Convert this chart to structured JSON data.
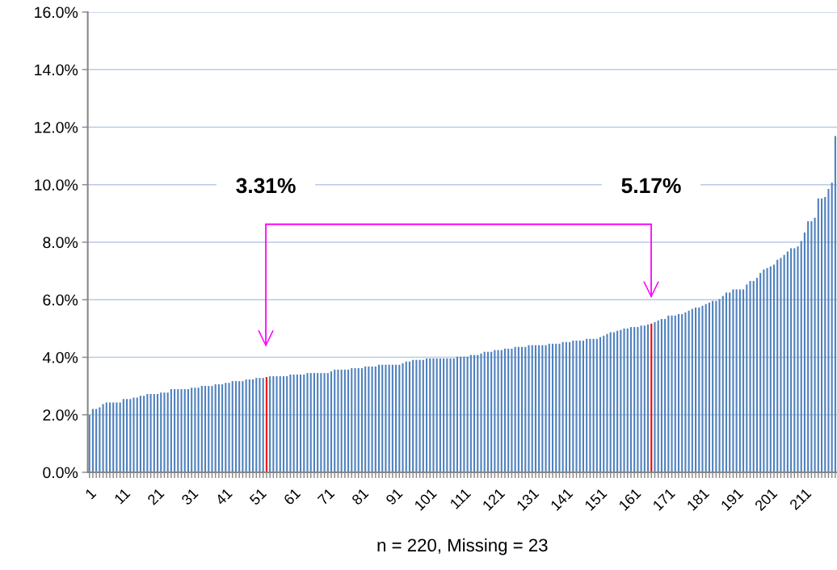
{
  "chart_data": {
    "type": "bar",
    "xlabel": "n = 220, Missing = 23",
    "categories": [
      "1",
      null,
      null,
      null,
      null,
      null,
      null,
      null,
      null,
      null,
      "11",
      null,
      null,
      null,
      null,
      null,
      null,
      null,
      null,
      null,
      "21",
      null,
      null,
      null,
      null,
      null,
      null,
      null,
      null,
      null,
      "31",
      null,
      null,
      null,
      null,
      null,
      null,
      null,
      null,
      null,
      "41",
      null,
      null,
      null,
      null,
      null,
      null,
      null,
      null,
      null,
      "51",
      null,
      null,
      null,
      null,
      null,
      null,
      null,
      null,
      null,
      "61",
      null,
      null,
      null,
      null,
      null,
      null,
      null,
      null,
      null,
      "71",
      null,
      null,
      null,
      null,
      null,
      null,
      null,
      null,
      null,
      "81",
      null,
      null,
      null,
      null,
      null,
      null,
      null,
      null,
      null,
      "91",
      null,
      null,
      null,
      null,
      null,
      null,
      null,
      null,
      null,
      "101",
      null,
      null,
      null,
      null,
      null,
      null,
      null,
      null,
      null,
      "111",
      null,
      null,
      null,
      null,
      null,
      null,
      null,
      null,
      null,
      "121",
      null,
      null,
      null,
      null,
      null,
      null,
      null,
      null,
      null,
      "131",
      null,
      null,
      null,
      null,
      null,
      null,
      null,
      null,
      null,
      "141",
      null,
      null,
      null,
      null,
      null,
      null,
      null,
      null,
      null,
      "151",
      null,
      null,
      null,
      null,
      null,
      null,
      null,
      null,
      null,
      "161",
      null,
      null,
      null,
      null,
      null,
      null,
      null,
      null,
      null,
      "171",
      null,
      null,
      null,
      null,
      null,
      null,
      null,
      null,
      null,
      "181",
      null,
      null,
      null,
      null,
      null,
      null,
      null,
      null,
      null,
      "191",
      null,
      null,
      null,
      null,
      null,
      null,
      null,
      null,
      null,
      "201",
      null,
      null,
      null,
      null,
      null,
      null,
      null,
      null,
      null,
      "211",
      null,
      null,
      null,
      null,
      null,
      null,
      null,
      null,
      null
    ],
    "values": [
      2.0,
      2.2,
      2.2,
      2.26,
      2.37,
      2.43,
      2.43,
      2.43,
      2.43,
      2.43,
      2.55,
      2.55,
      2.55,
      2.6,
      2.6,
      2.66,
      2.66,
      2.72,
      2.72,
      2.72,
      2.72,
      2.77,
      2.77,
      2.77,
      2.89,
      2.89,
      2.89,
      2.89,
      2.89,
      2.89,
      2.94,
      2.94,
      2.94,
      3.0,
      3.0,
      3.0,
      3.0,
      3.06,
      3.06,
      3.06,
      3.11,
      3.11,
      3.17,
      3.17,
      3.17,
      3.17,
      3.23,
      3.23,
      3.23,
      3.28,
      3.28,
      3.28,
      3.31,
      3.34,
      3.34,
      3.34,
      3.34,
      3.34,
      3.34,
      3.4,
      3.4,
      3.4,
      3.4,
      3.4,
      3.45,
      3.45,
      3.45,
      3.45,
      3.45,
      3.45,
      3.45,
      3.51,
      3.57,
      3.57,
      3.57,
      3.57,
      3.57,
      3.62,
      3.62,
      3.62,
      3.62,
      3.68,
      3.68,
      3.68,
      3.68,
      3.74,
      3.74,
      3.74,
      3.74,
      3.74,
      3.74,
      3.74,
      3.79,
      3.85,
      3.85,
      3.91,
      3.91,
      3.91,
      3.91,
      3.96,
      3.96,
      3.96,
      3.96,
      3.96,
      3.96,
      3.96,
      3.96,
      3.96,
      4.02,
      4.02,
      4.02,
      4.02,
      4.08,
      4.08,
      4.08,
      4.13,
      4.19,
      4.19,
      4.19,
      4.25,
      4.25,
      4.25,
      4.3,
      4.3,
      4.3,
      4.36,
      4.36,
      4.36,
      4.36,
      4.42,
      4.42,
      4.42,
      4.42,
      4.42,
      4.42,
      4.47,
      4.47,
      4.47,
      4.47,
      4.53,
      4.53,
      4.53,
      4.58,
      4.58,
      4.58,
      4.58,
      4.64,
      4.64,
      4.64,
      4.64,
      4.7,
      4.75,
      4.81,
      4.87,
      4.87,
      4.92,
      4.95,
      5.0,
      5.0,
      5.05,
      5.05,
      5.05,
      5.1,
      5.1,
      5.14,
      5.17,
      5.22,
      5.28,
      5.33,
      5.33,
      5.45,
      5.45,
      5.45,
      5.5,
      5.5,
      5.56,
      5.62,
      5.68,
      5.73,
      5.73,
      5.79,
      5.85,
      5.9,
      5.96,
      5.96,
      6.02,
      6.13,
      6.25,
      6.25,
      6.36,
      6.36,
      6.36,
      6.36,
      6.53,
      6.65,
      6.65,
      6.76,
      6.93,
      7.05,
      7.1,
      7.16,
      7.22,
      7.39,
      7.45,
      7.56,
      7.68,
      7.79,
      7.79,
      7.85,
      8.04,
      8.34,
      8.73,
      8.73,
      8.85,
      9.52,
      9.52,
      9.57,
      9.85,
      10.07,
      11.69
    ],
    "colors": [
      "#4f81bd",
      "#4f81bd",
      "#4f81bd",
      "#4f81bd",
      "#4f81bd",
      "#4f81bd",
      "#4f81bd",
      "#4f81bd",
      "#4f81bd",
      "#4f81bd",
      "#4f81bd",
      "#4f81bd",
      "#4f81bd",
      "#4f81bd",
      "#4f81bd",
      "#4f81bd",
      "#4f81bd",
      "#4f81bd",
      "#4f81bd",
      "#4f81bd",
      "#4f81bd",
      "#4f81bd",
      "#4f81bd",
      "#4f81bd",
      "#4f81bd",
      "#4f81bd",
      "#4f81bd",
      "#4f81bd",
      "#4f81bd",
      "#4f81bd",
      "#4f81bd",
      "#4f81bd",
      "#4f81bd",
      "#4f81bd",
      "#4f81bd",
      "#4f81bd",
      "#4f81bd",
      "#4f81bd",
      "#4f81bd",
      "#4f81bd",
      "#4f81bd",
      "#4f81bd",
      "#4f81bd",
      "#4f81bd",
      "#4f81bd",
      "#4f81bd",
      "#4f81bd",
      "#4f81bd",
      "#4f81bd",
      "#4f81bd",
      "#4f81bd",
      "#4f81bd",
      "#ff0000",
      "#4f81bd",
      "#4f81bd",
      "#4f81bd",
      "#4f81bd",
      "#4f81bd",
      "#4f81bd",
      "#4f81bd",
      "#4f81bd",
      "#4f81bd",
      "#4f81bd",
      "#4f81bd",
      "#4f81bd",
      "#4f81bd",
      "#4f81bd",
      "#4f81bd",
      "#4f81bd",
      "#4f81bd",
      "#4f81bd",
      "#4f81bd",
      "#4f81bd",
      "#4f81bd",
      "#4f81bd",
      "#4f81bd",
      "#4f81bd",
      "#4f81bd",
      "#4f81bd",
      "#4f81bd",
      "#4f81bd",
      "#4f81bd",
      "#4f81bd",
      "#4f81bd",
      "#4f81bd",
      "#4f81bd",
      "#4f81bd",
      "#4f81bd",
      "#4f81bd",
      "#4f81bd",
      "#4f81bd",
      "#4f81bd",
      "#4f81bd",
      "#4f81bd",
      "#4f81bd",
      "#4f81bd",
      "#4f81bd",
      "#4f81bd",
      "#4f81bd",
      "#4f81bd",
      "#4f81bd",
      "#4f81bd",
      "#4f81bd",
      "#4f81bd",
      "#4f81bd",
      "#4f81bd",
      "#4f81bd",
      "#4f81bd",
      "#4f81bd",
      "#4f81bd",
      "#4f81bd",
      "#4f81bd",
      "#4f81bd",
      "#4f81bd",
      "#4f81bd",
      "#4f81bd",
      "#4f81bd",
      "#4f81bd",
      "#4f81bd",
      "#4f81bd",
      "#4f81bd",
      "#4f81bd",
      "#4f81bd",
      "#4f81bd",
      "#4f81bd",
      "#4f81bd",
      "#4f81bd",
      "#4f81bd",
      "#4f81bd",
      "#4f81bd",
      "#4f81bd",
      "#4f81bd",
      "#4f81bd",
      "#4f81bd",
      "#4f81bd",
      "#4f81bd",
      "#4f81bd",
      "#4f81bd",
      "#4f81bd",
      "#4f81bd",
      "#4f81bd",
      "#4f81bd",
      "#4f81bd",
      "#4f81bd",
      "#4f81bd",
      "#4f81bd",
      "#4f81bd",
      "#4f81bd",
      "#4f81bd",
      "#4f81bd",
      "#4f81bd",
      "#4f81bd",
      "#4f81bd",
      "#4f81bd",
      "#4f81bd",
      "#4f81bd",
      "#4f81bd",
      "#4f81bd",
      "#4f81bd",
      "#4f81bd",
      "#4f81bd",
      "#4f81bd",
      "#4f81bd",
      "#4f81bd",
      "#4f81bd",
      "#ff0000",
      "#4f81bd",
      "#4f81bd",
      "#4f81bd",
      "#4f81bd",
      "#4f81bd",
      "#4f81bd",
      "#4f81bd",
      "#4f81bd",
      "#4f81bd",
      "#4f81bd",
      "#4f81bd",
      "#4f81bd",
      "#4f81bd",
      "#4f81bd",
      "#4f81bd",
      "#4f81bd",
      "#4f81bd",
      "#4f81bd",
      "#4f81bd",
      "#4f81bd",
      "#4f81bd",
      "#4f81bd",
      "#4f81bd",
      "#4f81bd",
      "#4f81bd",
      "#4f81bd",
      "#4f81bd",
      "#4f81bd",
      "#4f81bd",
      "#4f81bd",
      "#4f81bd",
      "#4f81bd",
      "#4f81bd",
      "#4f81bd",
      "#4f81bd",
      "#4f81bd",
      "#4f81bd",
      "#4f81bd",
      "#4f81bd",
      "#4f81bd",
      "#4f81bd",
      "#4f81bd",
      "#4f81bd",
      "#4f81bd",
      "#4f81bd",
      "#4f81bd",
      "#4f81bd",
      "#4f81bd",
      "#4f81bd",
      "#4f81bd",
      "#4f81bd",
      "#4f81bd",
      "#4f81bd",
      "#4f81bd"
    ],
    "annotations": [
      "3.31%",
      "5.17%"
    ],
    "ylim": [
      0,
      16
    ],
    "yticks": [
      {
        "value": 0,
        "label": "0.0%"
      },
      {
        "value": 2,
        "label": "2.0%"
      },
      {
        "value": 4,
        "label": "4.0%"
      },
      {
        "value": 6,
        "label": "6.0%"
      },
      {
        "value": 8,
        "label": "8.0%"
      },
      {
        "value": 10,
        "label": "10.0%"
      },
      {
        "value": 12,
        "label": "12.0%"
      },
      {
        "value": 14,
        "label": "14.0%"
      },
      {
        "value": 16,
        "label": "16.0%"
      }
    ],
    "grid": "y"
  }
}
